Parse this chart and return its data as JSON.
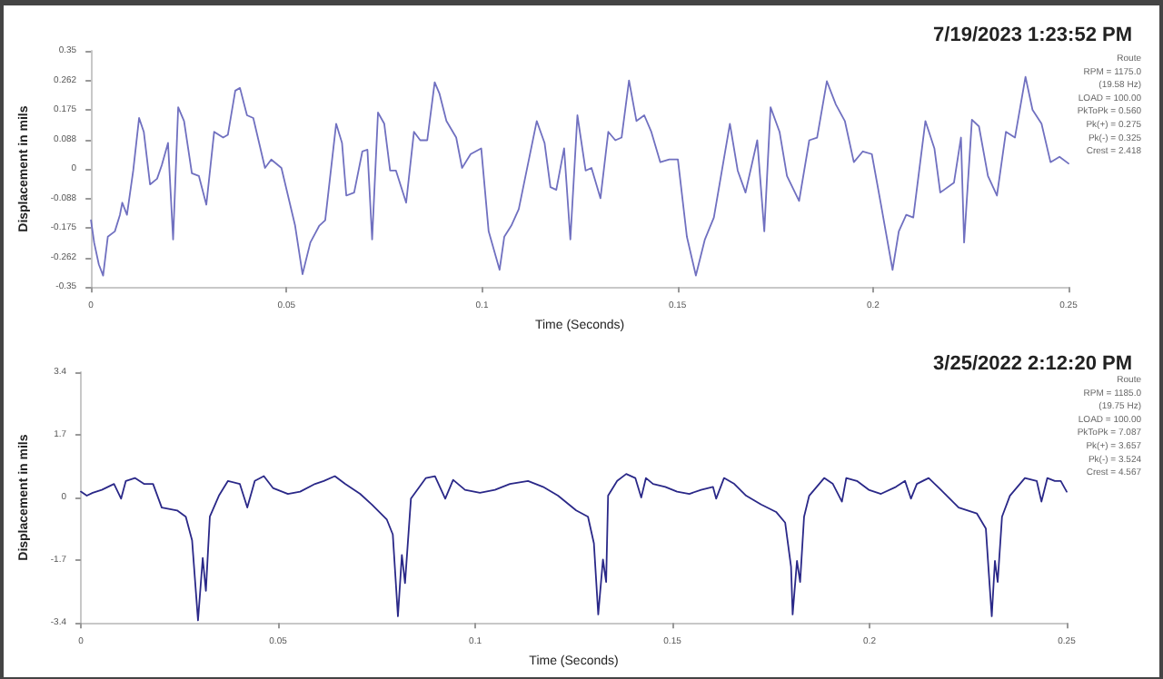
{
  "chart_data": [
    {
      "type": "line",
      "title": "7/19/2023 1:23:52 PM",
      "xlabel": "Time (Seconds)",
      "ylabel": "Displacement in mils",
      "annotations": [
        "Route",
        "RPM = 1175.0",
        "(19.58 Hz)",
        "LOAD = 100.00",
        "PkToPk = 0.560",
        "Pk(+) = 0.275",
        "Pk(-) = 0.325",
        "Crest = 2.418"
      ],
      "x": [
        0,
        0.0008,
        0.002,
        0.0031,
        0.0043,
        0.0061,
        0.0074,
        0.008,
        0.0092,
        0.0108,
        0.0123,
        0.0135,
        0.0151,
        0.0169,
        0.0181,
        0.0197,
        0.021,
        0.0223,
        0.0238,
        0.0258,
        0.0276,
        0.0295,
        0.0315,
        0.0338,
        0.035,
        0.0369,
        0.0381,
        0.0399,
        0.0415,
        0.0445,
        0.0461,
        0.0487,
        0.0522,
        0.0541,
        0.0561,
        0.0584,
        0.0599,
        0.0627,
        0.0642,
        0.0653,
        0.0673,
        0.0694,
        0.0707,
        0.0719,
        0.0734,
        0.075,
        0.0765,
        0.078,
        0.0806,
        0.0826,
        0.0842,
        0.086,
        0.0879,
        0.0891,
        0.0909,
        0.0934,
        0.0949,
        0.0971,
        0.0998,
        0.1017,
        0.1045,
        0.1057,
        0.1075,
        0.1094,
        0.114,
        0.116,
        0.1175,
        0.119,
        0.121,
        0.1226,
        0.1244,
        0.1265,
        0.128,
        0.1303,
        0.1323,
        0.1341,
        0.1357,
        0.1376,
        0.1395,
        0.1415,
        0.1433,
        0.1456,
        0.1479,
        0.1501,
        0.1524,
        0.1547,
        0.157,
        0.1593,
        0.1634,
        0.1654,
        0.1674,
        0.1704,
        0.1722,
        0.1738,
        0.1761,
        0.178,
        0.1811,
        0.1837,
        0.1857,
        0.1882,
        0.1905,
        0.1928,
        0.1951,
        0.1974,
        0.1997,
        0.202,
        0.205,
        0.2066,
        0.2085,
        0.2103,
        0.2134,
        0.2157,
        0.2172,
        0.2207,
        0.2225,
        0.2233,
        0.2253,
        0.2271,
        0.2294,
        0.2317,
        0.234,
        0.2363,
        0.239,
        0.2408,
        0.2431,
        0.2454,
        0.2477,
        0.25
      ],
      "series": [
        {
          "color": "#7070c0",
          "values": [
            -0.152,
            -0.218,
            -0.283,
            -0.316,
            -0.201,
            -0.185,
            -0.136,
            -0.1,
            -0.136,
            -0.005,
            0.151,
            0.11,
            -0.046,
            -0.029,
            0.011,
            0.077,
            -0.209,
            0.183,
            0.142,
            -0.013,
            -0.021,
            -0.106,
            0.11,
            0.093,
            0.101,
            0.232,
            0.24,
            0.159,
            0.151,
            0.003,
            0.028,
            0.003,
            -0.168,
            -0.312,
            -0.218,
            -0.168,
            -0.152,
            0.134,
            0.077,
            -0.079,
            -0.07,
            0.052,
            0.057,
            -0.209,
            0.167,
            0.134,
            -0.005,
            -0.005,
            -0.1,
            0.11,
            0.085,
            0.085,
            0.257,
            0.224,
            0.142,
            0.093,
            0.003,
            0.044,
            0.061,
            -0.185,
            -0.299,
            -0.201,
            -0.168,
            -0.119,
            0.142,
            0.077,
            -0.054,
            -0.062,
            0.061,
            -0.209,
            0.159,
            -0.005,
            0.003,
            -0.087,
            0.11,
            0.085,
            0.093,
            0.262,
            0.142,
            0.159,
            0.11,
            0.02,
            0.028,
            0.028,
            -0.201,
            -0.316,
            -0.209,
            -0.144,
            0.134,
            -0.005,
            -0.07,
            0.085,
            -0.185,
            0.183,
            0.11,
            -0.021,
            -0.095,
            0.085,
            0.093,
            0.26,
            0.191,
            0.142,
            0.02,
            0.052,
            0.044,
            -0.103,
            -0.299,
            -0.185,
            -0.136,
            -0.144,
            0.142,
            0.061,
            -0.07,
            -0.041,
            0.093,
            -0.218,
            0.146,
            0.126,
            -0.021,
            -0.079,
            0.11,
            0.093,
            0.273,
            0.175,
            0.134,
            0.02,
            0.036,
            0.016
          ]
        }
      ],
      "xlim": [
        0,
        0.25
      ],
      "xticks": [
        0,
        0.05,
        0.1,
        0.15,
        0.2,
        0.25
      ],
      "ylim": [
        -0.35,
        0.35
      ],
      "yticks": [
        -0.35,
        {
          "value": -0.2625,
          "label": "-0.262"
        },
        -0.175,
        {
          "value": -0.0875,
          "label": "-0.088"
        },
        0,
        {
          "value": 0.0875,
          "label": "0.088"
        },
        0.175,
        {
          "value": 0.2625,
          "label": "0.262"
        },
        0.35
      ],
      "grid": false,
      "marker": "none",
      "line_style": "solid"
    },
    {
      "type": "line",
      "title": "3/25/2022 2:12:20 PM",
      "xlabel": "Time (Seconds)",
      "ylabel": "Displacement in mils",
      "annotations": [
        "Route",
        "RPM = 1185.0",
        "(19.75 Hz)",
        "LOAD = 100.00",
        "PkToPk = 7.087",
        "Pk(+) = 3.657",
        "Pk(-) = 3.524",
        "Crest = 4.567"
      ],
      "x": [
        0,
        0.0015,
        0.003,
        0.0053,
        0.0084,
        0.0102,
        0.0114,
        0.0137,
        0.016,
        0.0183,
        0.0205,
        0.0244,
        0.0266,
        0.0282,
        0.0297,
        0.0309,
        0.0317,
        0.0327,
        0.035,
        0.0373,
        0.0403,
        0.0422,
        0.0441,
        0.0464,
        0.0487,
        0.0525,
        0.0556,
        0.0594,
        0.0616,
        0.0644,
        0.067,
        0.0708,
        0.0738,
        0.0776,
        0.0791,
        0.0804,
        0.0814,
        0.0822,
        0.0837,
        0.0875,
        0.0898,
        0.0924,
        0.0944,
        0.0974,
        0.1012,
        0.105,
        0.1088,
        0.1134,
        0.1172,
        0.121,
        0.1256,
        0.1286,
        0.1301,
        0.1312,
        0.1324,
        0.1332,
        0.1337,
        0.136,
        0.1383,
        0.1406,
        0.1421,
        0.1433,
        0.1451,
        0.1482,
        0.1512,
        0.1543,
        0.1573,
        0.1603,
        0.1611,
        0.1631,
        0.1657,
        0.1687,
        0.1725,
        0.1763,
        0.1786,
        0.1801,
        0.1805,
        0.1816,
        0.1824,
        0.1834,
        0.1847,
        0.1885,
        0.1907,
        0.193,
        0.1941,
        0.1968,
        0.1998,
        0.2029,
        0.2067,
        0.209,
        0.2105,
        0.212,
        0.215,
        0.2181,
        0.2226,
        0.2272,
        0.2295,
        0.2302,
        0.231,
        0.2318,
        0.2325,
        0.2336,
        0.2356,
        0.2394,
        0.2424,
        0.2436,
        0.2451,
        0.247,
        0.2485,
        0.25
      ],
      "series": [
        {
          "color": "#2a2888",
          "values": [
            0.16,
            0.05,
            0.13,
            0.21,
            0.37,
            -0.03,
            0.45,
            0.53,
            0.37,
            0.37,
            -0.27,
            -0.35,
            -0.52,
            -1.16,
            -3.33,
            -1.64,
            -2.53,
            -0.52,
            0.05,
            0.45,
            0.37,
            -0.27,
            0.45,
            0.58,
            0.26,
            0.1,
            0.16,
            0.37,
            0.45,
            0.58,
            0.37,
            0.1,
            -0.19,
            -0.6,
            -1.0,
            -3.22,
            -1.56,
            -2.32,
            -0.03,
            0.53,
            0.58,
            -0.03,
            0.48,
            0.21,
            0.13,
            0.21,
            0.37,
            0.45,
            0.29,
            0.05,
            -0.35,
            -0.52,
            -1.24,
            -3.17,
            -1.68,
            -2.29,
            0.05,
            0.45,
            0.64,
            0.53,
            0,
            0.53,
            0.37,
            0.29,
            0.16,
            0.1,
            0.21,
            0.29,
            -0.03,
            0.53,
            0.37,
            0.05,
            -0.19,
            -0.39,
            -0.68,
            -1.88,
            -3.17,
            -1.72,
            -2.29,
            -0.52,
            0.05,
            0.53,
            0.37,
            -0.11,
            0.53,
            0.45,
            0.21,
            0.1,
            0.29,
            0.45,
            -0.03,
            0.37,
            0.53,
            0.21,
            -0.27,
            -0.43,
            -0.84,
            -1.97,
            -3.22,
            -1.72,
            -2.29,
            -0.52,
            0.05,
            0.53,
            0.45,
            -0.11,
            0.53,
            0.45,
            0.45,
            0.16
          ]
        }
      ],
      "xlim": [
        0,
        0.25
      ],
      "xticks": [
        0,
        0.05,
        0.1,
        0.15,
        0.2,
        0.25
      ],
      "ylim": [
        -3.4,
        3.4
      ],
      "yticks": [
        -3.4,
        -1.7,
        0,
        1.7,
        3.4
      ],
      "grid": false,
      "marker": "none",
      "line_style": "solid"
    }
  ]
}
